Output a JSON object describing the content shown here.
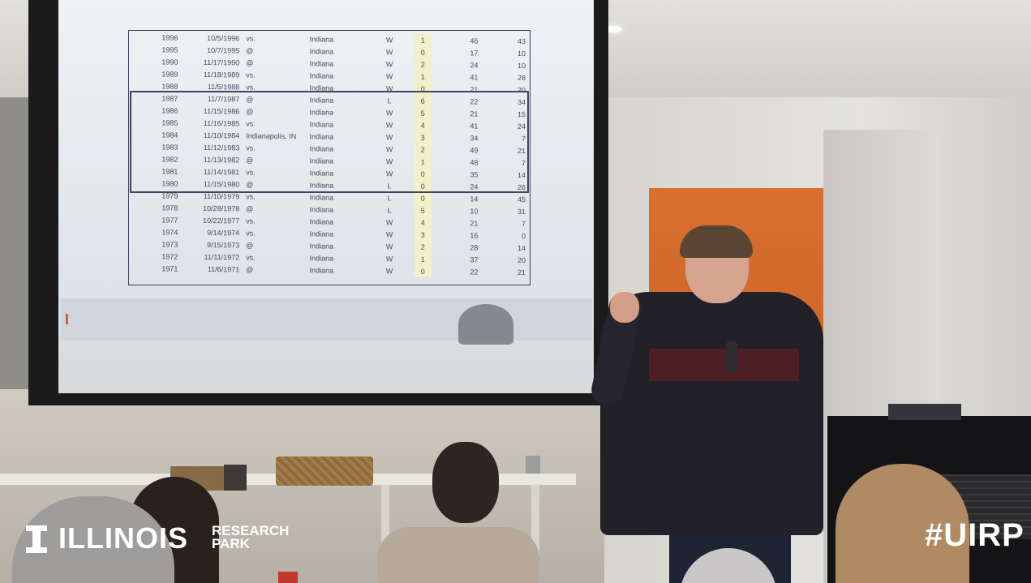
{
  "watermark": {
    "logo_word": "ILLINOIS",
    "logo_sub_line1": "RESEARCH",
    "logo_sub_line2": "PARK",
    "hashtag": "#UIRP"
  },
  "slide": {
    "rows": [
      {
        "year": "1996",
        "date": "10/5/1996",
        "loc": "vs.",
        "opp": "Indiana",
        "res": "W",
        "n": "1",
        "a": "46",
        "b": "43"
      },
      {
        "year": "1995",
        "date": "10/7/1995",
        "loc": "@",
        "opp": "Indiana",
        "res": "W",
        "n": "0",
        "a": "17",
        "b": "10"
      },
      {
        "year": "1990",
        "date": "11/17/1990",
        "loc": "@",
        "opp": "Indiana",
        "res": "W",
        "n": "2",
        "a": "24",
        "b": "10"
      },
      {
        "year": "1989",
        "date": "11/18/1989",
        "loc": "vs.",
        "opp": "Indiana",
        "res": "W",
        "n": "1",
        "a": "41",
        "b": "28"
      },
      {
        "year": "1988",
        "date": "11/5/1988",
        "loc": "vs.",
        "opp": "Indiana",
        "res": "W",
        "n": "0",
        "a": "21",
        "b": "20"
      },
      {
        "year": "1987",
        "date": "11/7/1987",
        "loc": "@",
        "opp": "Indiana",
        "res": "L",
        "n": "6",
        "a": "22",
        "b": "34"
      },
      {
        "year": "1986",
        "date": "11/15/1986",
        "loc": "@",
        "opp": "Indiana",
        "res": "W",
        "n": "5",
        "a": "21",
        "b": "15"
      },
      {
        "year": "1985",
        "date": "11/16/1985",
        "loc": "vs.",
        "opp": "Indiana",
        "res": "W",
        "n": "4",
        "a": "41",
        "b": "24"
      },
      {
        "year": "1984",
        "date": "11/10/1984",
        "loc": "Indianapolis, IN",
        "opp": "Indiana",
        "res": "W",
        "n": "3",
        "a": "34",
        "b": "7"
      },
      {
        "year": "1983",
        "date": "11/12/1983",
        "loc": "vs.",
        "opp": "Indiana",
        "res": "W",
        "n": "2",
        "a": "49",
        "b": "21"
      },
      {
        "year": "1982",
        "date": "11/13/1982",
        "loc": "@",
        "opp": "Indiana",
        "res": "W",
        "n": "1",
        "a": "48",
        "b": "7"
      },
      {
        "year": "1981",
        "date": "11/14/1981",
        "loc": "vs.",
        "opp": "Indiana",
        "res": "W",
        "n": "0",
        "a": "35",
        "b": "14"
      },
      {
        "year": "1980",
        "date": "11/15/1980",
        "loc": "@",
        "opp": "Indiana",
        "res": "L",
        "n": "0",
        "a": "24",
        "b": "26"
      },
      {
        "year": "1979",
        "date": "11/10/1979",
        "loc": "vs.",
        "opp": "Indiana",
        "res": "L",
        "n": "0",
        "a": "14",
        "b": "45"
      },
      {
        "year": "1978",
        "date": "10/28/1978",
        "loc": "@",
        "opp": "Indiana",
        "res": "L",
        "n": "5",
        "a": "10",
        "b": "31"
      },
      {
        "year": "1977",
        "date": "10/22/1977",
        "loc": "vs.",
        "opp": "Indiana",
        "res": "W",
        "n": "4",
        "a": "21",
        "b": "7"
      },
      {
        "year": "1974",
        "date": "9/14/1974",
        "loc": "vs.",
        "opp": "Indiana",
        "res": "W",
        "n": "3",
        "a": "16",
        "b": "0"
      },
      {
        "year": "1973",
        "date": "9/15/1973",
        "loc": "@",
        "opp": "Indiana",
        "res": "W",
        "n": "2",
        "a": "28",
        "b": "14"
      },
      {
        "year": "1972",
        "date": "11/11/1972",
        "loc": "vs.",
        "opp": "Indiana",
        "res": "W",
        "n": "1",
        "a": "37",
        "b": "20"
      },
      {
        "year": "1971",
        "date": "11/6/1971",
        "loc": "@",
        "opp": "Indiana",
        "res": "W",
        "n": "0",
        "a": "22",
        "b": "21"
      }
    ]
  }
}
